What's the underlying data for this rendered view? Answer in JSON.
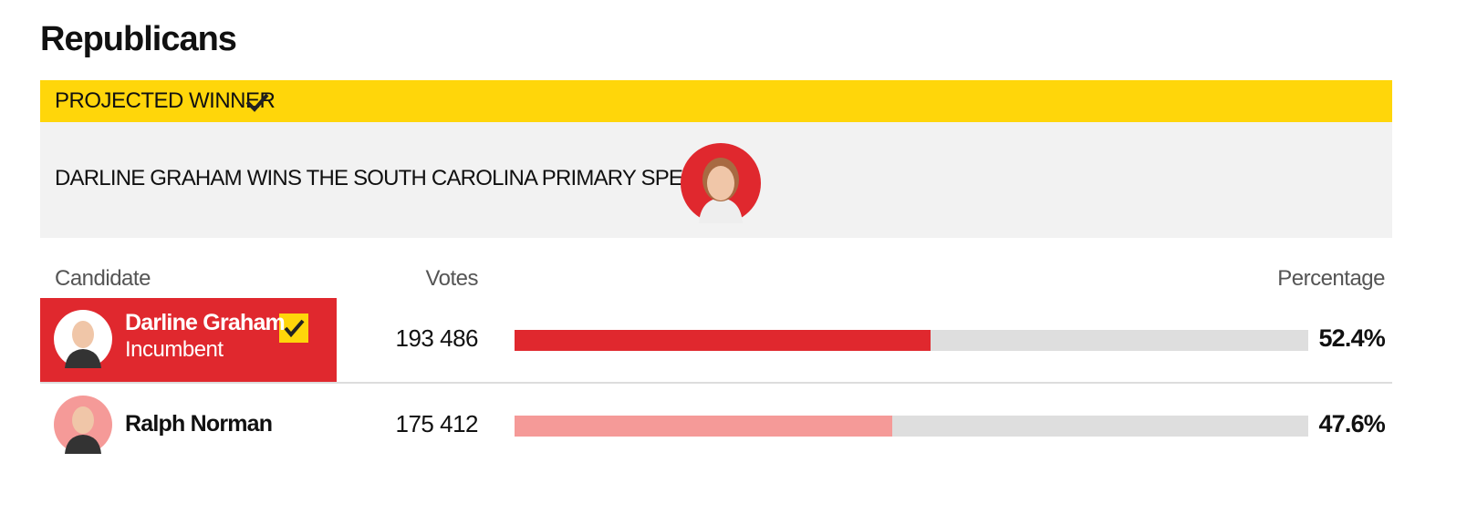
{
  "title": "Republicans",
  "banner": {
    "label": "PROJECTED WINNER",
    "headline": "DARLINE GRAHAM WINS THE SOUTH CAROLINA PRIMARY SPECIAL"
  },
  "table": {
    "columns": [
      "Candidate",
      "Votes",
      "Percentage"
    ],
    "rows": [
      {
        "name": "Darline Graham",
        "status": "Incumbent",
        "votes": "193 486",
        "percentage": 52.4,
        "percentage_label": "52.4%",
        "winner": true,
        "color": "#e0282e"
      },
      {
        "name": "Ralph Norman",
        "votes": "175 412",
        "percentage": 47.6,
        "percentage_label": "47.6%",
        "winner": false,
        "color": "#f59a98"
      }
    ]
  }
}
